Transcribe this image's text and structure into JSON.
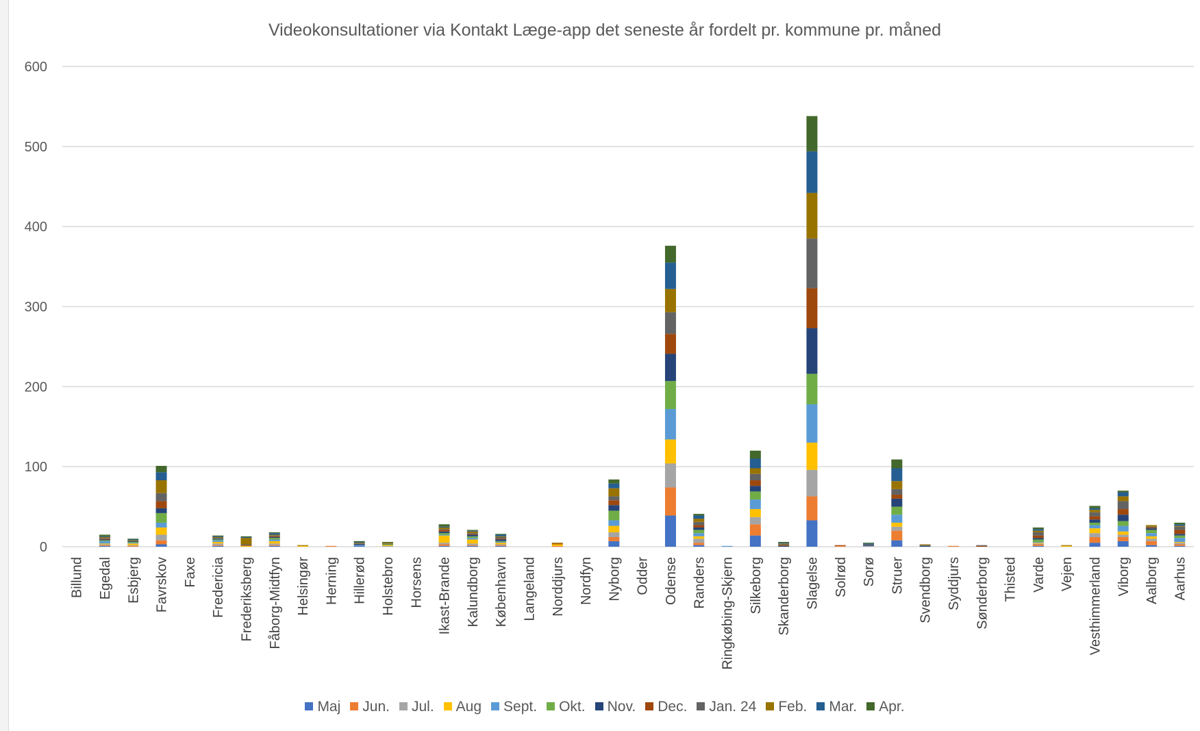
{
  "chart_data": {
    "type": "bar",
    "stacked": true,
    "title": "Videokonsultationer via Kontakt Læge-app det seneste år fordelt pr. kommune pr. måned",
    "xlabel": "",
    "ylabel": "",
    "ylim": [
      0,
      600
    ],
    "yticks": [
      0,
      100,
      200,
      300,
      400,
      500,
      600
    ],
    "grid": true,
    "legend_position": "bottom",
    "categories": [
      "Billund",
      "Egedal",
      "Esbjerg",
      "Favrskov",
      "Faxe",
      "Fredericia",
      "Frederiksberg",
      "Fåborg-Midtfyn",
      "Helsingør",
      "Herning",
      "Hillerød",
      "Holstebro",
      "Horsens",
      "Ikast-Brande",
      "Kalundborg",
      "København",
      "Langeland",
      "Norddjurs",
      "Nordfyn",
      "Nyborg",
      "Odder",
      "Odense",
      "Randers",
      "Ringkøbing-Skjern",
      "Silkeborg",
      "Skanderborg",
      "Slagelse",
      "Solrød",
      "Sorø",
      "Struer",
      "Svendborg",
      "Syddjurs",
      "Sønderborg",
      "Thisted",
      "Varde",
      "Vejen",
      "Vesthimmerland",
      "Viborg",
      "Aalborg",
      "Aarhus"
    ],
    "series": [
      {
        "name": "Maj",
        "color": "#4472C4",
        "values": [
          0,
          1,
          0,
          3,
          0,
          1,
          0,
          1,
          0,
          0,
          1,
          0,
          0,
          1,
          1,
          1,
          0,
          0,
          0,
          7,
          0,
          39,
          2,
          0,
          14,
          0,
          33,
          0,
          0,
          8,
          0,
          0,
          0,
          0,
          1,
          0,
          5,
          7,
          2,
          1
        ]
      },
      {
        "name": "Jun.",
        "color": "#ED7D31",
        "values": [
          0,
          1,
          1,
          5,
          0,
          1,
          0,
          1,
          0,
          1,
          0,
          0,
          0,
          2,
          1,
          1,
          0,
          1,
          0,
          5,
          0,
          35,
          3,
          0,
          14,
          0,
          30,
          1,
          0,
          12,
          0,
          1,
          0,
          0,
          2,
          0,
          7,
          5,
          5,
          2
        ]
      },
      {
        "name": "Jul.",
        "color": "#A5A5A5",
        "values": [
          0,
          1,
          1,
          7,
          0,
          2,
          0,
          2,
          0,
          0,
          0,
          1,
          0,
          2,
          2,
          1,
          0,
          0,
          0,
          6,
          0,
          30,
          5,
          0,
          9,
          0,
          33,
          0,
          1,
          5,
          0,
          0,
          0,
          0,
          1,
          0,
          5,
          3,
          3,
          2
        ]
      },
      {
        "name": "Aug",
        "color": "#FFC000",
        "values": [
          0,
          1,
          2,
          9,
          0,
          2,
          1,
          3,
          1,
          0,
          0,
          1,
          0,
          9,
          5,
          2,
          0,
          2,
          0,
          8,
          0,
          30,
          3,
          0,
          10,
          0,
          34,
          0,
          0,
          5,
          0,
          0,
          0,
          0,
          1,
          1,
          6,
          4,
          3,
          1
        ]
      },
      {
        "name": "Sept.",
        "color": "#5B9BD5",
        "values": [
          0,
          3,
          1,
          6,
          0,
          2,
          0,
          2,
          0,
          0,
          1,
          0,
          0,
          1,
          2,
          1,
          0,
          0,
          0,
          7,
          0,
          38,
          4,
          1,
          12,
          0,
          48,
          0,
          0,
          10,
          0,
          0,
          0,
          0,
          1,
          0,
          4,
          7,
          4,
          5
        ]
      },
      {
        "name": "Okt.",
        "color": "#70AD47",
        "values": [
          0,
          1,
          1,
          12,
          0,
          1,
          0,
          2,
          0,
          0,
          0,
          1,
          0,
          2,
          2,
          1,
          0,
          0,
          0,
          12,
          0,
          35,
          4,
          0,
          10,
          0,
          38,
          0,
          0,
          10,
          0,
          0,
          0,
          0,
          3,
          0,
          3,
          6,
          4,
          3
        ]
      },
      {
        "name": "Nov.",
        "color": "#264478",
        "values": [
          0,
          1,
          1,
          6,
          0,
          1,
          0,
          1,
          0,
          0,
          1,
          0,
          0,
          2,
          2,
          2,
          0,
          0,
          0,
          7,
          0,
          34,
          3,
          0,
          7,
          1,
          57,
          0,
          1,
          10,
          1,
          0,
          0,
          0,
          2,
          0,
          4,
          8,
          2,
          2
        ]
      },
      {
        "name": "Dec.",
        "color": "#9E480E",
        "values": [
          0,
          1,
          0,
          9,
          0,
          0,
          1,
          1,
          0,
          0,
          0,
          0,
          0,
          2,
          1,
          1,
          0,
          1,
          0,
          6,
          0,
          25,
          3,
          0,
          7,
          1,
          50,
          1,
          0,
          5,
          0,
          0,
          1,
          0,
          3,
          0,
          4,
          7,
          1,
          5
        ]
      },
      {
        "name": "Jan. 24",
        "color": "#636363",
        "values": [
          0,
          1,
          0,
          10,
          0,
          1,
          1,
          1,
          0,
          0,
          1,
          1,
          0,
          1,
          1,
          2,
          0,
          0,
          0,
          5,
          0,
          27,
          4,
          0,
          8,
          1,
          62,
          0,
          1,
          7,
          1,
          0,
          1,
          0,
          4,
          0,
          5,
          10,
          1,
          4
        ]
      },
      {
        "name": "Feb.",
        "color": "#997300",
        "values": [
          0,
          1,
          1,
          16,
          0,
          1,
          8,
          1,
          1,
          0,
          1,
          1,
          0,
          2,
          2,
          1,
          0,
          1,
          0,
          10,
          0,
          29,
          4,
          0,
          7,
          1,
          57,
          0,
          0,
          10,
          1,
          0,
          0,
          0,
          2,
          1,
          3,
          6,
          2,
          1
        ]
      },
      {
        "name": "Mar.",
        "color": "#255E91",
        "values": [
          0,
          1,
          1,
          10,
          0,
          1,
          1,
          2,
          0,
          0,
          1,
          0,
          0,
          1,
          1,
          2,
          0,
          0,
          0,
          6,
          0,
          33,
          4,
          0,
          12,
          1,
          52,
          0,
          1,
          16,
          0,
          0,
          0,
          0,
          2,
          0,
          2,
          5,
          0,
          2
        ]
      },
      {
        "name": "Apr.",
        "color": "#43682B",
        "values": [
          0,
          2,
          1,
          8,
          0,
          1,
          1,
          1,
          0,
          0,
          1,
          1,
          0,
          3,
          1,
          1,
          0,
          0,
          0,
          5,
          0,
          21,
          2,
          0,
          10,
          1,
          44,
          0,
          1,
          11,
          0,
          0,
          0,
          0,
          2,
          0,
          3,
          2,
          0,
          2
        ]
      }
    ]
  }
}
